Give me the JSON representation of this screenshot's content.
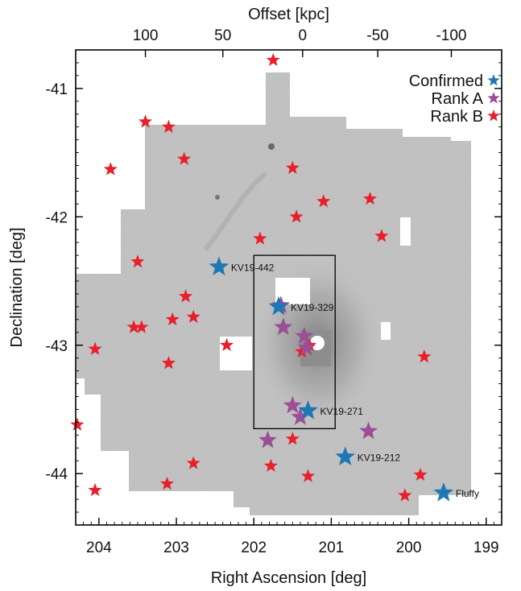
{
  "chart_data": {
    "type": "scatter",
    "title": "",
    "xlabel": "Right Ascension [deg]",
    "ylabel": "Declination [deg]",
    "top_xlabel": "Offset [kpc]",
    "xlim": [
      204.3,
      198.8
    ],
    "ylim": [
      -44.4,
      -40.7
    ],
    "x_ticks": [
      204,
      203,
      202,
      201,
      200,
      199
    ],
    "x_tick_labels": [
      "204",
      "203",
      "202",
      "201",
      "200",
      "199"
    ],
    "y_ticks": [
      -41,
      -42,
      -43,
      -44
    ],
    "y_tick_labels": [
      "-41",
      "-42",
      "-43",
      "-44"
    ],
    "top_ticks": [
      {
        "offset": 100,
        "ra": 203.4,
        "label": "100"
      },
      {
        "offset": 50,
        "ra": 202.4,
        "label": "50"
      },
      {
        "offset": 0,
        "ra": 201.37,
        "label": "0"
      },
      {
        "offset": -50,
        "ra": 200.4,
        "label": "-50"
      },
      {
        "offset": -100,
        "ra": 199.45,
        "label": "-100"
      }
    ],
    "legend_position": "top-right",
    "colors": {
      "confirmed": "#1f77b4",
      "rank_a": "#9b4f96",
      "rank_b": "#e8202c",
      "survey_field": "#c9c9c9",
      "box": "#000000"
    },
    "series": [
      {
        "name": "Confirmed",
        "key": "confirmed",
        "points": [
          {
            "x": 202.45,
            "y": -42.39,
            "label": "KV19-442"
          },
          {
            "x": 201.68,
            "y": -42.7,
            "label": "KV19-329"
          },
          {
            "x": 201.3,
            "y": -43.51,
            "label": "KV19-271"
          },
          {
            "x": 200.82,
            "y": -43.87,
            "label": "KV19-212"
          },
          {
            "x": 199.55,
            "y": -44.15,
            "label": "Fluffy"
          }
        ]
      },
      {
        "name": "Rank A",
        "key": "rank_a",
        "points": [
          {
            "x": 201.65,
            "y": -42.69
          },
          {
            "x": 201.62,
            "y": -42.86
          },
          {
            "x": 201.35,
            "y": -42.93
          },
          {
            "x": 201.5,
            "y": -43.47
          },
          {
            "x": 201.4,
            "y": -43.56
          },
          {
            "x": 201.82,
            "y": -43.74
          },
          {
            "x": 200.52,
            "y": -43.67
          },
          {
            "x": 201.32,
            "y": -43.02
          }
        ]
      },
      {
        "name": "Rank B",
        "key": "rank_b",
        "points": [
          {
            "x": 201.75,
            "y": -40.78
          },
          {
            "x": 203.4,
            "y": -41.26
          },
          {
            "x": 203.1,
            "y": -41.3
          },
          {
            "x": 202.9,
            "y": -41.55
          },
          {
            "x": 203.85,
            "y": -41.63
          },
          {
            "x": 201.5,
            "y": -41.62
          },
          {
            "x": 200.5,
            "y": -41.86
          },
          {
            "x": 201.1,
            "y": -41.88
          },
          {
            "x": 201.45,
            "y": -42.0
          },
          {
            "x": 200.35,
            "y": -42.15
          },
          {
            "x": 201.92,
            "y": -42.17
          },
          {
            "x": 203.5,
            "y": -42.35
          },
          {
            "x": 202.88,
            "y": -42.62
          },
          {
            "x": 203.55,
            "y": -42.86
          },
          {
            "x": 203.45,
            "y": -42.86
          },
          {
            "x": 203.05,
            "y": -42.8
          },
          {
            "x": 202.78,
            "y": -42.78
          },
          {
            "x": 202.35,
            "y": -43.0
          },
          {
            "x": 204.05,
            "y": -43.03
          },
          {
            "x": 203.1,
            "y": -43.14
          },
          {
            "x": 201.38,
            "y": -43.05
          },
          {
            "x": 201.28,
            "y": -43.0
          },
          {
            "x": 199.8,
            "y": -43.09
          },
          {
            "x": 204.28,
            "y": -43.62
          },
          {
            "x": 201.5,
            "y": -43.73
          },
          {
            "x": 202.78,
            "y": -43.92
          },
          {
            "x": 201.78,
            "y": -43.94
          },
          {
            "x": 201.3,
            "y": -44.02
          },
          {
            "x": 203.12,
            "y": -44.08
          },
          {
            "x": 204.05,
            "y": -44.13
          },
          {
            "x": 199.85,
            "y": -44.01
          },
          {
            "x": 200.05,
            "y": -44.17
          }
        ]
      }
    ],
    "box": {
      "x0": 202.0,
      "x1": 200.95,
      "y0": -42.3,
      "y1": -43.65
    }
  }
}
